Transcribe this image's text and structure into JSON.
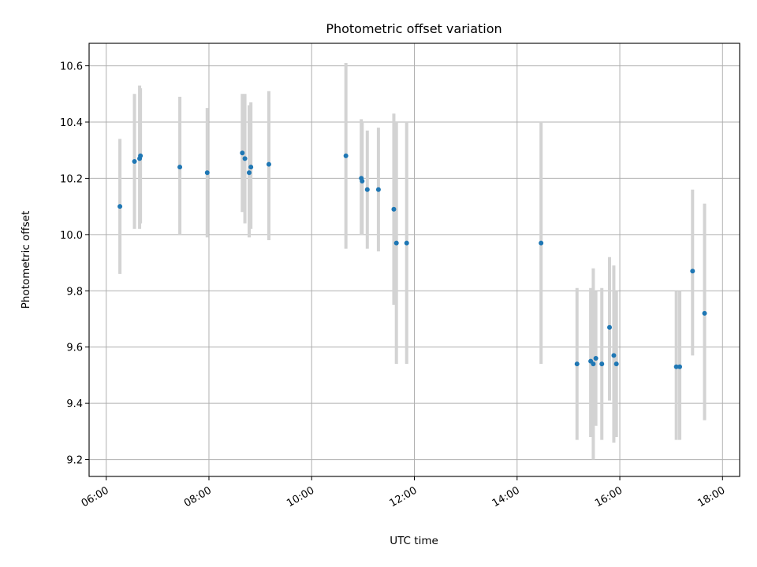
{
  "colors": {
    "point": "#1f77b4",
    "error_bar": "#d3d3d3",
    "grid": "#b0b0b0",
    "axes": "#000000"
  },
  "chart_data": {
    "type": "scatter",
    "title": "Photometric offset variation",
    "xlabel": "UTC time",
    "ylabel": "Photometric offset",
    "grid": true,
    "xlim": [
      "05:40",
      "18:20"
    ],
    "ylim": [
      9.14,
      10.68
    ],
    "xticks": [
      "06:00",
      "08:00",
      "10:00",
      "12:00",
      "14:00",
      "16:00",
      "18:00"
    ],
    "yticks": [
      "9.2",
      "9.4",
      "9.6",
      "9.8",
      "10.0",
      "10.2",
      "10.4",
      "10.6"
    ],
    "points": [
      {
        "x": "06:16",
        "y": 10.1,
        "lo": 9.86,
        "hi": 10.34
      },
      {
        "x": "06:33",
        "y": 10.26,
        "lo": 10.02,
        "hi": 10.5
      },
      {
        "x": "06:39",
        "y": 10.27,
        "lo": 10.02,
        "hi": 10.53
      },
      {
        "x": "06:40",
        "y": 10.28,
        "lo": 10.04,
        "hi": 10.52
      },
      {
        "x": "07:26",
        "y": 10.24,
        "lo": 10.0,
        "hi": 10.49
      },
      {
        "x": "07:58",
        "y": 10.22,
        "lo": 9.99,
        "hi": 10.45
      },
      {
        "x": "08:39",
        "y": 10.29,
        "lo": 10.08,
        "hi": 10.5
      },
      {
        "x": "08:42",
        "y": 10.27,
        "lo": 10.04,
        "hi": 10.5
      },
      {
        "x": "08:47",
        "y": 10.22,
        "lo": 9.99,
        "hi": 10.46
      },
      {
        "x": "08:49",
        "y": 10.24,
        "lo": 10.02,
        "hi": 10.47
      },
      {
        "x": "09:10",
        "y": 10.25,
        "lo": 9.98,
        "hi": 10.51
      },
      {
        "x": "10:40",
        "y": 10.28,
        "lo": 9.95,
        "hi": 10.61
      },
      {
        "x": "10:58",
        "y": 10.2,
        "lo": 10.0,
        "hi": 10.41
      },
      {
        "x": "10:59",
        "y": 10.19,
        "lo": 10.0,
        "hi": 10.4
      },
      {
        "x": "11:05",
        "y": 10.16,
        "lo": 9.95,
        "hi": 10.37
      },
      {
        "x": "11:18",
        "y": 10.16,
        "lo": 9.94,
        "hi": 10.38
      },
      {
        "x": "11:36",
        "y": 10.09,
        "lo": 9.75,
        "hi": 10.43
      },
      {
        "x": "11:39",
        "y": 9.97,
        "lo": 9.54,
        "hi": 10.4
      },
      {
        "x": "11:51",
        "y": 9.97,
        "lo": 9.54,
        "hi": 10.4
      },
      {
        "x": "14:28",
        "y": 9.97,
        "lo": 9.54,
        "hi": 10.4
      },
      {
        "x": "15:10",
        "y": 9.54,
        "lo": 9.27,
        "hi": 9.81
      },
      {
        "x": "15:26",
        "y": 9.55,
        "lo": 9.28,
        "hi": 9.81
      },
      {
        "x": "15:29",
        "y": 9.54,
        "lo": 9.2,
        "hi": 9.88
      },
      {
        "x": "15:32",
        "y": 9.56,
        "lo": 9.32,
        "hi": 9.8
      },
      {
        "x": "15:39",
        "y": 9.54,
        "lo": 9.27,
        "hi": 9.81
      },
      {
        "x": "15:48",
        "y": 9.67,
        "lo": 9.41,
        "hi": 9.92
      },
      {
        "x": "15:53",
        "y": 9.57,
        "lo": 9.26,
        "hi": 9.89
      },
      {
        "x": "15:56",
        "y": 9.54,
        "lo": 9.28,
        "hi": 9.8
      },
      {
        "x": "17:06",
        "y": 9.53,
        "lo": 9.27,
        "hi": 9.8
      },
      {
        "x": "17:10",
        "y": 9.53,
        "lo": 9.27,
        "hi": 9.8
      },
      {
        "x": "17:25",
        "y": 9.87,
        "lo": 9.57,
        "hi": 10.16
      },
      {
        "x": "17:39",
        "y": 9.72,
        "lo": 9.34,
        "hi": 10.11
      }
    ]
  }
}
